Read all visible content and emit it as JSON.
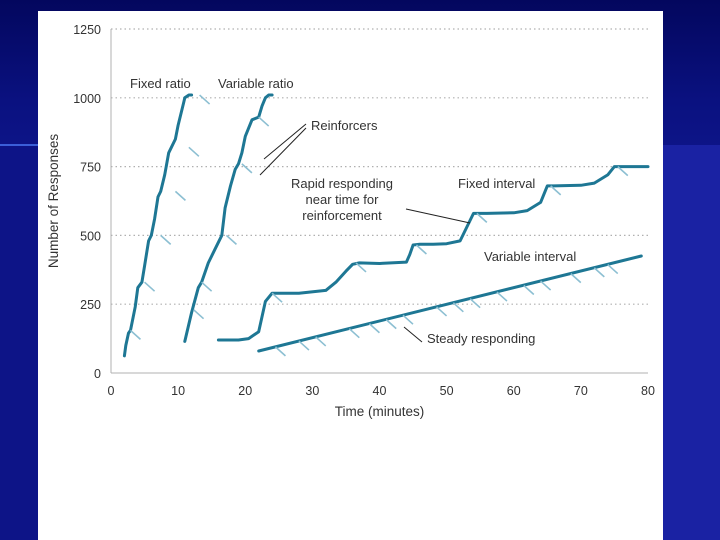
{
  "chart_data": {
    "type": "line",
    "xlabel": "Time (minutes)",
    "ylabel": "Number of Responses",
    "xlim": [
      0,
      80
    ],
    "ylim": [
      0,
      1250
    ],
    "x_ticks": [
      "0",
      "10",
      "20",
      "30",
      "40",
      "50",
      "60",
      "70",
      "80"
    ],
    "y_ticks": [
      "0",
      "250",
      "500",
      "750",
      "1000",
      "1250"
    ],
    "grid": "horizontal dotted",
    "colors": {
      "line": "#1e7794",
      "tick": "#8cbfd2",
      "grid": "#b0b0b0",
      "text": "#333333"
    },
    "series": [
      {
        "name": "Fixed ratio",
        "x": [
          2,
          2.2,
          2.6,
          2.9,
          3.6,
          4,
          4.6,
          5,
          5.6,
          6,
          6.5,
          7,
          7.4,
          8,
          8.6,
          9,
          9.6,
          10,
          10.8,
          11,
          11.6,
          12
        ],
        "y": [
          62,
          100,
          145,
          155,
          240,
          310,
          330,
          390,
          480,
          500,
          560,
          640,
          660,
          720,
          800,
          820,
          850,
          900,
          980,
          1000,
          1010,
          1010
        ],
        "reinforcements": [
          [
            2.9,
            155
          ],
          [
            5,
            330
          ],
          [
            7.4,
            500
          ],
          [
            9.6,
            660
          ],
          [
            11.6,
            820
          ],
          [
            13.2,
            1010
          ]
        ]
      },
      {
        "name": "Variable ratio",
        "x": [
          11,
          12,
          13,
          13.5,
          14.5,
          15.5,
          16.5,
          17,
          17.8,
          18.5,
          19,
          19.5,
          20,
          21,
          22,
          22.5,
          23,
          23.5,
          24
        ],
        "y": [
          115,
          220,
          310,
          330,
          400,
          450,
          500,
          600,
          680,
          740,
          760,
          800,
          860,
          920,
          930,
          970,
          1000,
          1010,
          1010
        ],
        "reinforcements": [
          [
            12.3,
            230
          ],
          [
            13.5,
            330
          ],
          [
            17.2,
            500
          ],
          [
            19.5,
            760
          ],
          [
            22,
            930
          ]
        ]
      },
      {
        "name": "Fixed interval",
        "x": [
          16,
          19,
          20.5,
          22,
          23,
          24,
          28,
          32,
          33.5,
          35,
          36,
          37,
          40,
          44,
          44.5,
          45,
          46,
          47,
          48,
          50,
          52,
          53,
          54,
          56,
          60,
          62,
          64,
          65,
          66,
          70,
          72,
          74,
          75,
          76,
          80
        ],
        "y": [
          120,
          120,
          125,
          150,
          260,
          290,
          290,
          300,
          330,
          370,
          395,
          400,
          398,
          403,
          430,
          465,
          468,
          468,
          468,
          470,
          480,
          530,
          580,
          580,
          582,
          590,
          620,
          680,
          680,
          682,
          690,
          720,
          750,
          750,
          750
        ],
        "reinforcements": [
          [
            24,
            290
          ],
          [
            36.5,
            400
          ],
          [
            45.5,
            465
          ],
          [
            54.5,
            580
          ],
          [
            65.5,
            680
          ],
          [
            75.5,
            750
          ]
        ]
      },
      {
        "name": "Variable interval",
        "x": [
          22,
          79
        ],
        "y": [
          80,
          425
        ],
        "reinforcements": [
          [
            24.5,
            95
          ],
          [
            28,
            116
          ],
          [
            30.5,
            131
          ],
          [
            35.5,
            161
          ],
          [
            38.5,
            179
          ],
          [
            41,
            194
          ],
          [
            43.5,
            210
          ],
          [
            48.5,
            240
          ],
          [
            51,
            255
          ],
          [
            53.5,
            270
          ],
          [
            57.5,
            294
          ],
          [
            61.5,
            318
          ],
          [
            64,
            334
          ],
          [
            68.5,
            361
          ],
          [
            72,
            382
          ],
          [
            74,
            394
          ]
        ]
      }
    ],
    "annotations": [
      {
        "id": "fixed_ratio",
        "text": [
          "Fixed ratio"
        ]
      },
      {
        "id": "variable_ratio",
        "text": [
          "Variable ratio"
        ]
      },
      {
        "id": "reinforcers",
        "text": [
          "Reinforcers"
        ]
      },
      {
        "id": "rapid",
        "text": [
          "Rapid responding",
          "near time for",
          "reinforcement"
        ]
      },
      {
        "id": "fixed_interval",
        "text": [
          "Fixed interval"
        ]
      },
      {
        "id": "variable_interval",
        "text": [
          "Variable interval"
        ]
      },
      {
        "id": "steady",
        "text": [
          "Steady responding"
        ]
      }
    ]
  }
}
